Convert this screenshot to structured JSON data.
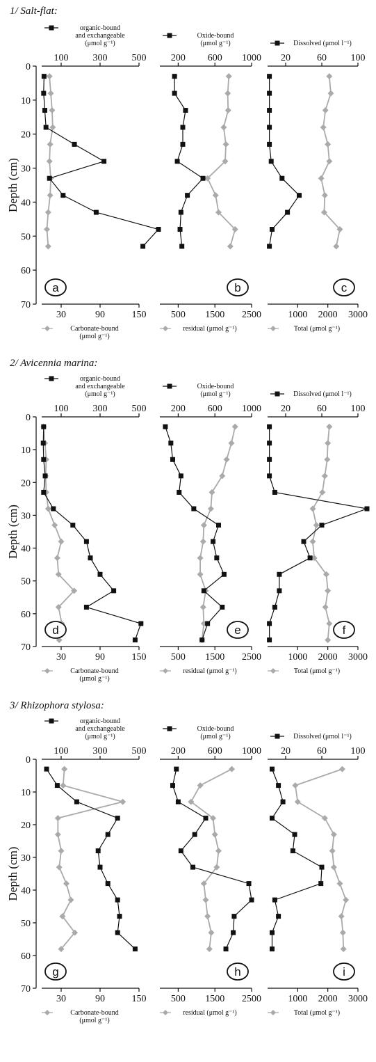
{
  "colors": {
    "black_series": "#111111",
    "gray_series": "#aaaaaa",
    "axis": "#111111"
  },
  "chart_data": [
    {
      "type": "line",
      "title": "1/ Salt-flat:",
      "ylabel": "Depth (cm)",
      "ylim": [
        0,
        70
      ],
      "yticks": [
        "0",
        "10",
        "20",
        "30",
        "40",
        "50",
        "60",
        "70"
      ],
      "columns": [
        {
          "panel_label": "a",
          "top": {
            "label_lines": [
              "organic-bound",
              "and exchangeable",
              "(μmol  g⁻¹)"
            ],
            "range": [
              0,
              500
            ],
            "ticks": [
              100,
              300,
              500
            ],
            "series": {
              "marker": "square",
              "depth": [
                3,
                8,
                13,
                18,
                23,
                28,
                33,
                38,
                43,
                48,
                53
              ],
              "values": [
                12,
                10,
                16,
                22,
                168,
                320,
                40,
                110,
                280,
                600,
                520
              ]
            }
          },
          "bottom": {
            "label_lines": [
              "Carbonate-bound",
              "(μmol  g⁻¹)"
            ],
            "range": [
              0,
              150
            ],
            "ticks": [
              30,
              90,
              150
            ],
            "series": {
              "marker": "diamond",
              "depth": [
                3,
                8,
                13,
                18,
                23,
                28,
                33,
                38,
                43,
                48,
                53
              ],
              "values": [
                12,
                14,
                16,
                17,
                13,
                12,
                14,
                13,
                10,
                8,
                10
              ]
            }
          }
        },
        {
          "panel_label": "b",
          "top": {
            "label_lines": [
              "Oxide-bound",
              "(μmol  g⁻¹)"
            ],
            "range": [
              0,
              1000
            ],
            "ticks": [
              200,
              600,
              1000
            ],
            "series": {
              "marker": "square",
              "depth": [
                3,
                8,
                13,
                18,
                23,
                28,
                33,
                38,
                43,
                48,
                53
              ],
              "values": [
                160,
                160,
                280,
                250,
                250,
                190,
                470,
                300,
                230,
                220,
                240
              ]
            }
          },
          "bottom": {
            "label_lines": [
              "residual (μmol  g⁻¹)"
            ],
            "range": [
              0,
              2500
            ],
            "ticks": [
              500,
              1500,
              2500
            ],
            "series": {
              "marker": "diamond",
              "depth": [
                3,
                8,
                13,
                18,
                23,
                28,
                33,
                38,
                43,
                48,
                53
              ],
              "values": [
                1880,
                1850,
                1860,
                1740,
                1800,
                1780,
                1300,
                1520,
                1600,
                2050,
                1920
              ]
            }
          }
        },
        {
          "panel_label": "c",
          "top": {
            "label_lines": [
              "Dissolved (μmol  l⁻¹)"
            ],
            "range": [
              0,
              100
            ],
            "ticks": [
              20,
              60,
              100
            ],
            "series": {
              "marker": "square",
              "depth": [
                3,
                8,
                13,
                18,
                23,
                28,
                33,
                38,
                43,
                48,
                53
              ],
              "values": [
                2,
                2,
                2,
                2,
                2,
                4,
                16,
                35,
                22,
                5,
                2
              ]
            }
          },
          "bottom": {
            "label_lines": [
              "Total (μmol  g⁻¹)"
            ],
            "range": [
              0,
              3000
            ],
            "ticks": [
              1000,
              2000,
              3000
            ],
            "series": {
              "marker": "diamond",
              "depth": [
                3,
                8,
                13,
                18,
                23,
                28,
                33,
                38,
                43,
                48,
                53
              ],
              "values": [
                2050,
                2100,
                1920,
                1850,
                2000,
                2050,
                1780,
                1900,
                1880,
                2400,
                2280
              ]
            }
          }
        }
      ]
    },
    {
      "type": "line",
      "title": "2/ Avicennia marina:",
      "ylabel": "Depth (cm)",
      "ylim": [
        0,
        70
      ],
      "yticks": [
        "0",
        "10",
        "20",
        "30",
        "40",
        "50",
        "60",
        "70"
      ],
      "columns": [
        {
          "panel_label": "d",
          "top": {
            "label_lines": [
              "organic-bound",
              "and exchangeable",
              "(μmol  g⁻¹)"
            ],
            "range": [
              0,
              500
            ],
            "ticks": [
              100,
              300,
              500
            ],
            "series": {
              "marker": "square",
              "depth": [
                3,
                8,
                13,
                18,
                23,
                28,
                33,
                38,
                43,
                48,
                53,
                58,
                63,
                68
              ],
              "values": [
                10,
                8,
                10,
                18,
                10,
                60,
                160,
                230,
                250,
                300,
                370,
                230,
                510,
                480
              ]
            }
          },
          "bottom": {
            "label_lines": [
              "Carbonate-bound",
              "(μmol  g⁻¹)"
            ],
            "range": [
              0,
              150
            ],
            "ticks": [
              30,
              90,
              150
            ],
            "series": {
              "marker": "diamond",
              "depth": [
                3,
                8,
                13,
                18,
                23,
                28,
                33,
                38,
                43,
                48,
                53,
                58,
                63,
                68
              ],
              "values": [
                3,
                5,
                7,
                6,
                7,
                10,
                20,
                30,
                24,
                26,
                50,
                26,
                31,
                27
              ]
            }
          }
        },
        {
          "panel_label": "e",
          "top": {
            "label_lines": [
              "Oxide-bound",
              "(μmol  g⁻¹)"
            ],
            "range": [
              0,
              1000
            ],
            "ticks": [
              200,
              600,
              1000
            ],
            "series": {
              "marker": "square",
              "depth": [
                3,
                8,
                13,
                18,
                23,
                28,
                33,
                38,
                43,
                48,
                53,
                58,
                63,
                68
              ],
              "values": [
                60,
                120,
                140,
                230,
                210,
                370,
                640,
                580,
                620,
                700,
                480,
                680,
                520,
                460
              ]
            }
          },
          "bottom": {
            "label_lines": [
              "residual (μmol  g⁻¹)"
            ],
            "range": [
              0,
              2500
            ],
            "ticks": [
              500,
              1500,
              2500
            ],
            "series": {
              "marker": "diamond",
              "depth": [
                3,
                8,
                13,
                18,
                23,
                28,
                33,
                38,
                43,
                48,
                53,
                58,
                63,
                68
              ],
              "values": [
                2050,
                1950,
                1820,
                1700,
                1420,
                1390,
                1200,
                1180,
                1100,
                1100,
                1250,
                1180,
                1200,
                1150
              ]
            }
          }
        },
        {
          "panel_label": "f",
          "top": {
            "label_lines": [
              "Dissolved (μmol  l⁻¹)"
            ],
            "range": [
              0,
              100
            ],
            "ticks": [
              20,
              60,
              100
            ],
            "series": {
              "marker": "square",
              "depth": [
                3,
                8,
                13,
                18,
                23,
                28,
                33,
                38,
                43,
                48,
                53,
                58,
                63,
                68
              ],
              "values": [
                2,
                2,
                2,
                2,
                8,
                110,
                60,
                40,
                47,
                13,
                13,
                8,
                2,
                2
              ]
            }
          },
          "bottom": {
            "label_lines": [
              "Total (μmol  g⁻¹)"
            ],
            "range": [
              0,
              3000
            ],
            "ticks": [
              1000,
              2000,
              3000
            ],
            "series": {
              "marker": "diamond",
              "depth": [
                3,
                8,
                13,
                18,
                23,
                28,
                33,
                38,
                43,
                48,
                53,
                58,
                63,
                68
              ],
              "values": [
                2050,
                2000,
                1980,
                1900,
                1820,
                1500,
                1620,
                1500,
                1550,
                1950,
                2000,
                1920,
                2050,
                2000
              ]
            }
          }
        }
      ]
    },
    {
      "type": "line",
      "title": "3/ Rhizophora stylosa:",
      "ylabel": "Depth (cm)",
      "ylim": [
        0,
        70
      ],
      "yticks": [
        "0",
        "10",
        "20",
        "30",
        "40",
        "50",
        "60",
        "70"
      ],
      "columns": [
        {
          "panel_label": "g",
          "top": {
            "label_lines": [
              "organic-bound",
              "and exchangeable",
              "(μmol  g⁻¹)"
            ],
            "range": [
              0,
              500
            ],
            "ticks": [
              100,
              300,
              500
            ],
            "series": {
              "marker": "square",
              "depth": [
                3,
                8,
                13,
                18,
                23,
                28,
                33,
                38,
                43,
                48,
                53,
                58
              ],
              "values": [
                25,
                80,
                180,
                390,
                340,
                290,
                300,
                340,
                390,
                400,
                390,
                480
              ]
            }
          },
          "bottom": {
            "label_lines": [
              "Carbonate-bound",
              "(μmol  g⁻¹)"
            ],
            "range": [
              0,
              150
            ],
            "ticks": [
              30,
              90,
              150
            ],
            "series": {
              "marker": "diamond",
              "depth": [
                3,
                8,
                13,
                18,
                23,
                28,
                33,
                38,
                43,
                48,
                53,
                58
              ],
              "values": [
                35,
                33,
                125,
                25,
                25,
                30,
                27,
                38,
                45,
                32,
                51,
                30
              ]
            }
          }
        },
        {
          "panel_label": "h",
          "top": {
            "label_lines": [
              "Oxide-bound",
              "(μmol  g⁻¹)"
            ],
            "range": [
              0,
              1000
            ],
            "ticks": [
              200,
              600,
              1000
            ],
            "series": {
              "marker": "square",
              "depth": [
                3,
                8,
                13,
                18,
                23,
                28,
                33,
                38,
                43,
                48,
                53,
                58
              ],
              "values": [
                180,
                140,
                200,
                500,
                380,
                230,
                360,
                970,
                1000,
                810,
                800,
                720
              ]
            }
          },
          "bottom": {
            "label_lines": [
              "residual (μmol  g⁻¹)"
            ],
            "range": [
              0,
              2500
            ],
            "ticks": [
              500,
              1500,
              2500
            ],
            "series": {
              "marker": "diamond",
              "depth": [
                3,
                8,
                13,
                18,
                23,
                28,
                33,
                38,
                43,
                48,
                53,
                58
              ],
              "values": [
                1960,
                1100,
                850,
                1450,
                1500,
                1600,
                1550,
                1200,
                1250,
                1300,
                1400,
                1350
              ]
            }
          }
        },
        {
          "panel_label": "i",
          "top": {
            "label_lines": [
              "Dissolved (μmol  l⁻¹)"
            ],
            "range": [
              0,
              100
            ],
            "ticks": [
              20,
              60,
              100
            ],
            "series": {
              "marker": "square",
              "depth": [
                3,
                8,
                13,
                18,
                23,
                28,
                33,
                38,
                43,
                48,
                53,
                58
              ],
              "values": [
                5,
                12,
                17,
                5,
                30,
                28,
                60,
                59,
                8,
                12,
                5,
                5
              ]
            }
          },
          "bottom": {
            "label_lines": [
              "Total (μmol  g⁻¹)"
            ],
            "range": [
              0,
              3000
            ],
            "ticks": [
              1000,
              2000,
              3000
            ],
            "series": {
              "marker": "diamond",
              "depth": [
                3,
                8,
                13,
                18,
                23,
                28,
                33,
                38,
                43,
                48,
                53,
                58
              ],
              "values": [
                2480,
                920,
                1000,
                1900,
                2200,
                2150,
                2200,
                2400,
                2600,
                2450,
                2500,
                2520
              ]
            }
          }
        }
      ]
    }
  ]
}
